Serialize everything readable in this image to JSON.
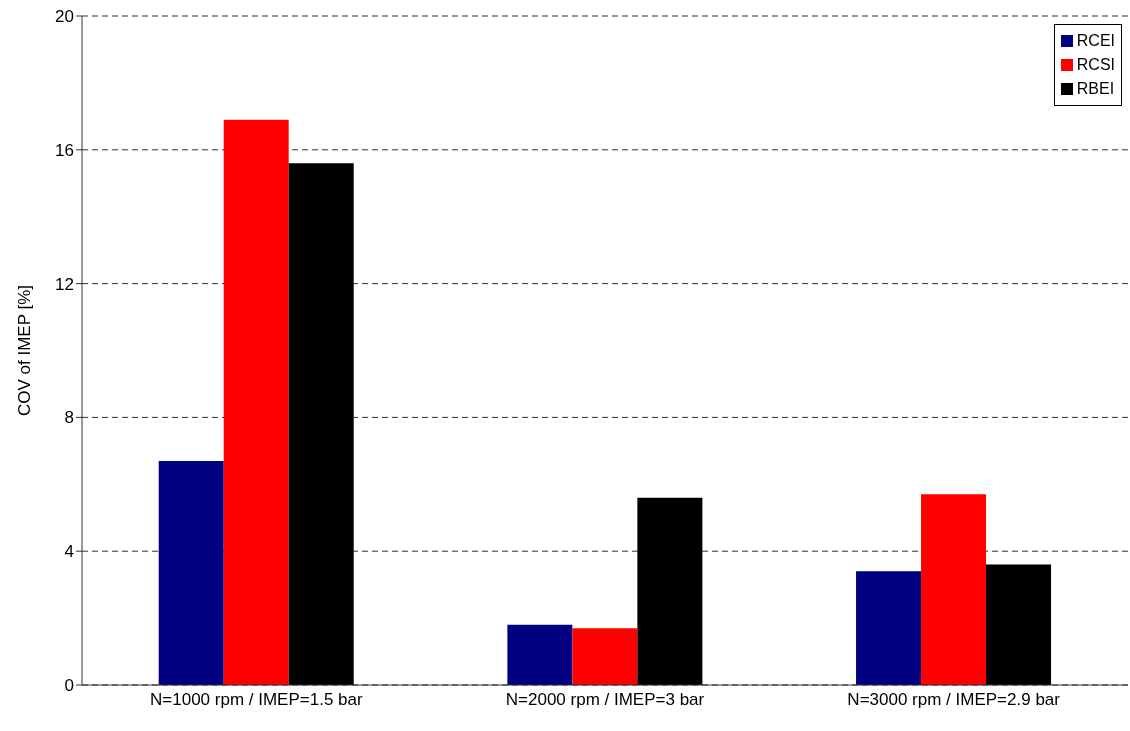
{
  "chart_data": {
    "type": "bar",
    "ylabel": "COV of IMEP [%]",
    "categories": [
      "N=1000 rpm / IMEP=1.5 bar",
      "N=2000 rpm / IMEP=3 bar",
      "N=3000 rpm / IMEP=2.9 bar"
    ],
    "series": [
      {
        "name": "RCEI",
        "color": "#000080",
        "values": [
          6.7,
          1.8,
          3.4
        ]
      },
      {
        "name": "RCSI",
        "color": "#ff0000",
        "values": [
          16.9,
          1.7,
          5.7
        ]
      },
      {
        "name": "RBEI",
        "color": "#000000",
        "values": [
          15.6,
          5.6,
          3.6
        ]
      }
    ],
    "ylim": [
      0,
      20
    ],
    "yticks": [
      0,
      4,
      8,
      12,
      16,
      20
    ],
    "grid": "y",
    "legend": "top right"
  }
}
